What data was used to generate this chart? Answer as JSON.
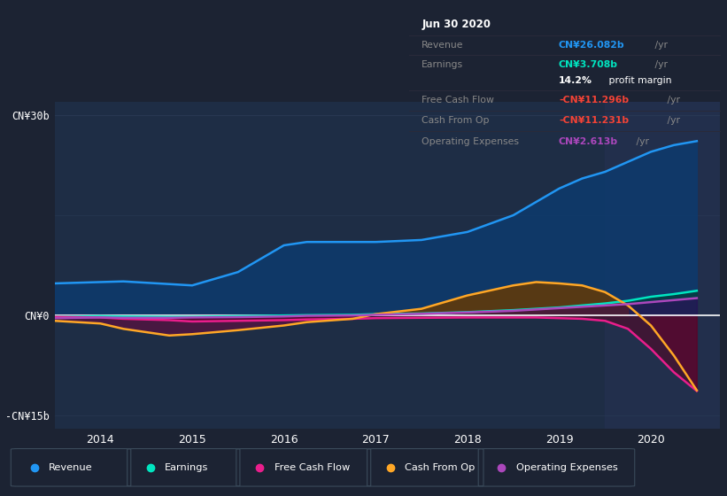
{
  "bg_color": "#1c2333",
  "plot_bg_color": "#1e2d45",
  "grid_color": "#2a3a55",
  "zero_line_color": "#ffffff",
  "highlight_x_start": 2019.5,
  "highlight_x_end": 2020.75,
  "highlight_color": "#243050",
  "years": [
    2013.5,
    2014.0,
    2014.25,
    2014.75,
    2015.0,
    2015.5,
    2016.0,
    2016.25,
    2016.75,
    2017.0,
    2017.5,
    2018.0,
    2018.5,
    2018.75,
    2019.0,
    2019.25,
    2019.5,
    2019.75,
    2020.0,
    2020.25,
    2020.5
  ],
  "revenue": [
    4.8,
    5.0,
    5.1,
    4.7,
    4.5,
    6.5,
    10.5,
    11.0,
    11.0,
    11.0,
    11.3,
    12.5,
    15.0,
    17.0,
    19.0,
    20.5,
    21.5,
    23.0,
    24.5,
    25.5,
    26.1
  ],
  "earnings": [
    -0.2,
    -0.1,
    -0.15,
    -0.2,
    -0.2,
    -0.1,
    0.0,
    0.05,
    0.1,
    0.2,
    0.3,
    0.5,
    0.8,
    1.0,
    1.2,
    1.5,
    1.8,
    2.2,
    2.8,
    3.2,
    3.7
  ],
  "free_cash_flow": [
    -0.2,
    -0.3,
    -0.5,
    -0.7,
    -0.9,
    -0.8,
    -0.7,
    -0.6,
    -0.5,
    -0.4,
    -0.35,
    -0.3,
    -0.3,
    -0.3,
    -0.4,
    -0.5,
    -0.8,
    -2.0,
    -5.0,
    -8.5,
    -11.3
  ],
  "cash_from_op": [
    -0.8,
    -1.2,
    -2.0,
    -3.0,
    -2.8,
    -2.2,
    -1.5,
    -1.0,
    -0.5,
    0.2,
    1.0,
    3.0,
    4.5,
    5.0,
    4.8,
    4.5,
    3.5,
    1.5,
    -1.5,
    -6.0,
    -11.2
  ],
  "operating_expenses": [
    -0.4,
    -0.3,
    -0.35,
    -0.35,
    -0.3,
    -0.25,
    -0.15,
    -0.05,
    0.0,
    0.1,
    0.25,
    0.45,
    0.7,
    0.9,
    1.1,
    1.3,
    1.5,
    1.7,
    2.0,
    2.3,
    2.6
  ],
  "ylim": [
    -17,
    32
  ],
  "xlim": [
    2013.5,
    2020.75
  ],
  "yticks": [
    -15,
    0,
    30
  ],
  "ytick_labels": [
    "-CN¥15b",
    "CN¥0",
    "CN¥30b"
  ],
  "xtick_years": [
    2014,
    2015,
    2016,
    2017,
    2018,
    2019,
    2020
  ],
  "revenue_color": "#2196f3",
  "earnings_color": "#00e5c0",
  "fcf_color": "#e91e8c",
  "cashop_color": "#ffa726",
  "opex_color": "#ab47bc",
  "revenue_fill": "#0d3a6e",
  "earnings_fill_pos": "#00403a",
  "earnings_fill_neg": "#3a0020",
  "cashop_fill_pos": "#6a3a00",
  "cashop_fill_neg": "#5a1040",
  "fcf_fill_neg": "#5a0020",
  "opex_fill_pos": "#3a0060",
  "opex_fill_neg": "#200030",
  "tooltip_bg": "#0a0a0a",
  "tooltip_sep_color": "#2a2a3a",
  "tooltip_label_color": "#888888",
  "tooltip_title_color": "#ffffff",
  "tooltip_revenue_color": "#2196f3",
  "tooltip_earnings_color": "#00e5c0",
  "tooltip_neg_color": "#f44336",
  "tooltip_opex_color": "#ab47bc",
  "legend_border_color": "#3a4a5a"
}
